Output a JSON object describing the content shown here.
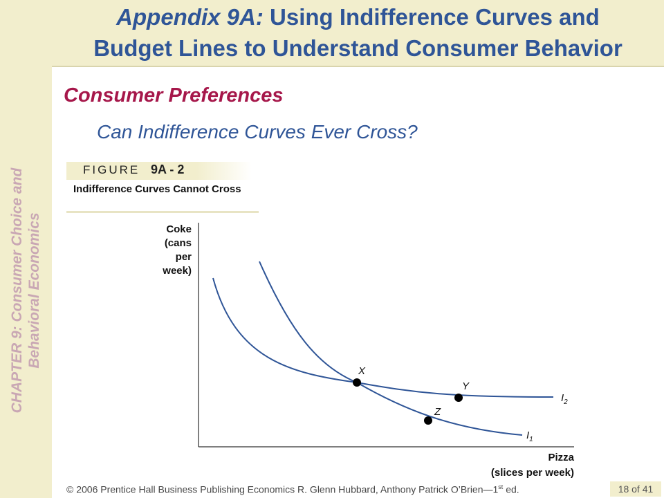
{
  "sidebar": {
    "line1": "CHAPTER 9:  Consumer Choice and",
    "line2": "Behavioral Economics"
  },
  "header": {
    "title_part1": "Appendix 9A:",
    "title_part2": " Using Indifference Curves and",
    "title_line2": "Budget Lines to Understand Consumer Behavior"
  },
  "section_title": "Consumer Preferences",
  "question": "Can Indifference Curves Ever Cross?",
  "figure": {
    "label": "FIGURE",
    "number": "9A - 2",
    "caption": "Indifference Curves Cannot Cross"
  },
  "diagram": {
    "y_axis_label": [
      "Coke",
      "(cans",
      "per",
      "week)"
    ],
    "x_axis_label": [
      "Pizza",
      "(slices per week)"
    ],
    "points": [
      "X",
      "Y",
      "Z"
    ],
    "curves": [
      {
        "name": "I",
        "subscript": "2"
      },
      {
        "name": "I",
        "subscript": "1"
      }
    ],
    "colors": {
      "curve": "#2f5597",
      "axis": "#555555",
      "point": "#000000"
    }
  },
  "footer": {
    "text_before_sup": "© 2006 Prentice Hall Business Publishing   Economics  R. Glenn Hubbard, Anthony Patrick O’Brien—1",
    "sup": "st",
    "text_after_sup": " ed.",
    "page": "18 of 41"
  }
}
